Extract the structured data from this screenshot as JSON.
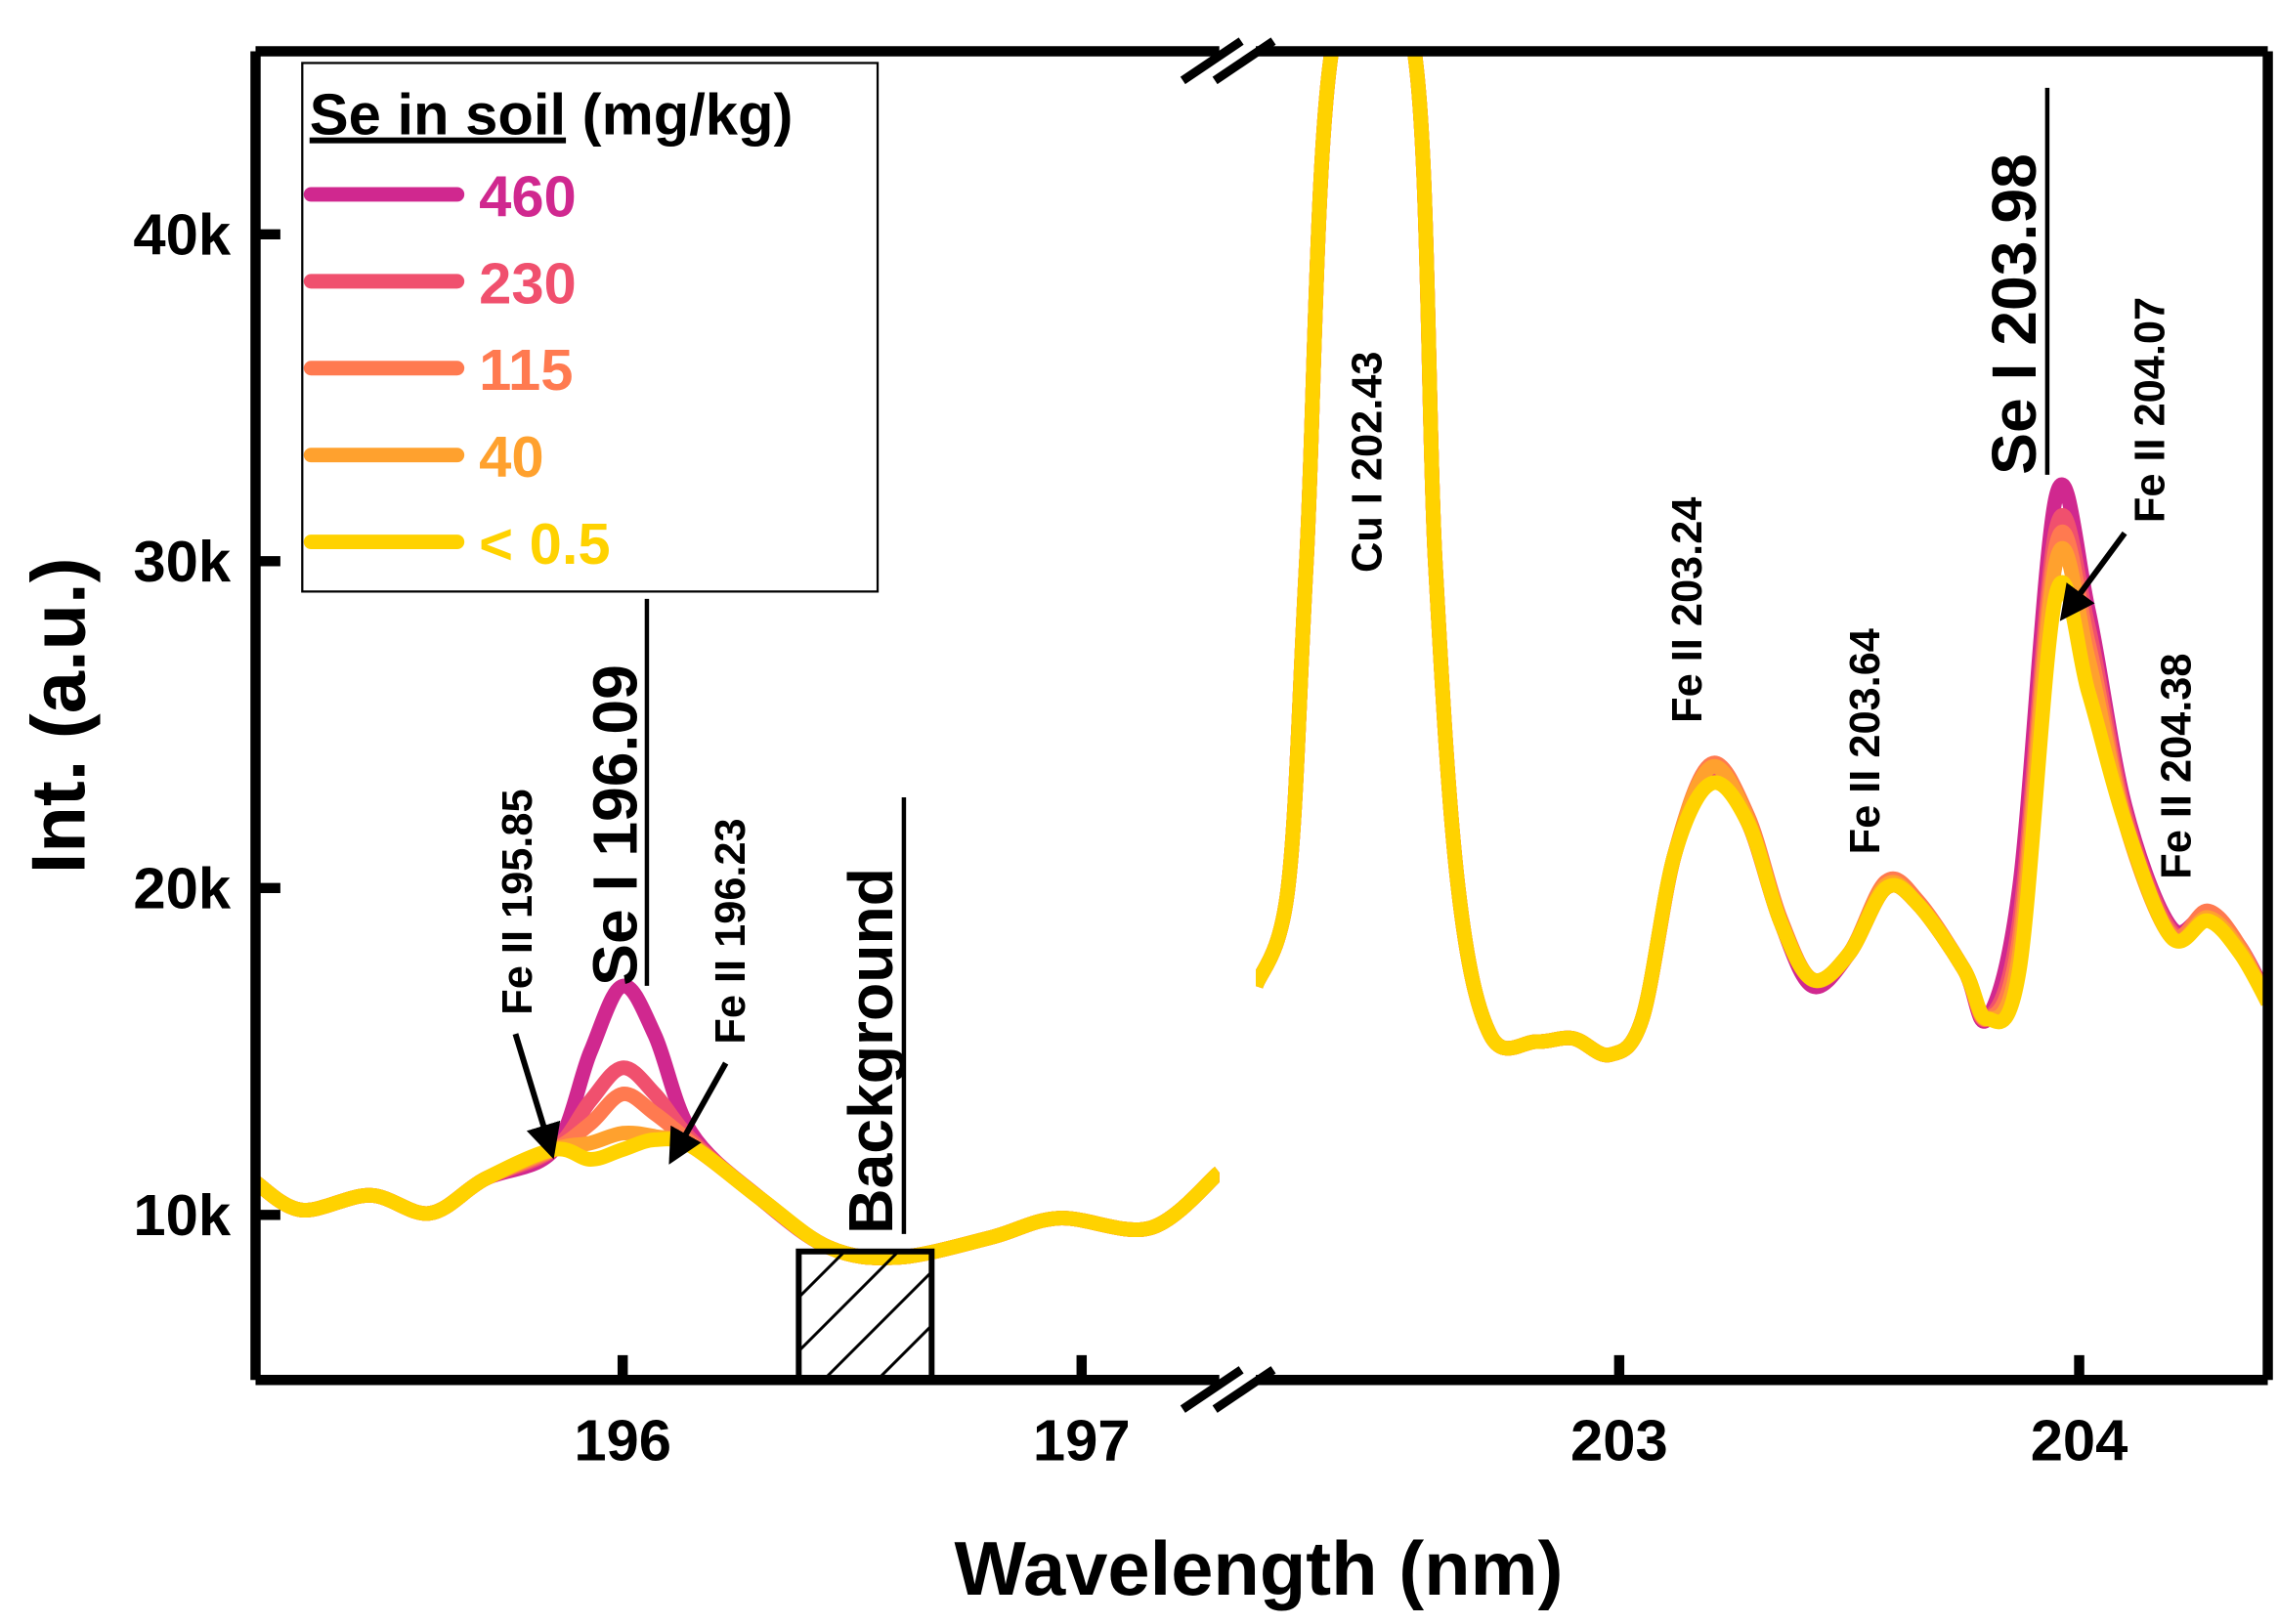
{
  "chart_data": {
    "type": "line",
    "xlabel": "Wavelength (nm)",
    "ylabel": "Int. (a.u.)",
    "ylim": [
      4950,
      45600
    ],
    "yticks": [
      {
        "v": 10000,
        "label": "10k"
      },
      {
        "v": 20000,
        "label": "20k"
      },
      {
        "v": 30000,
        "label": "30k"
      },
      {
        "v": 40000,
        "label": "40k"
      }
    ],
    "axis_break": true,
    "segments": [
      {
        "xlim": [
          195.2,
          197.3
        ],
        "xticks": [
          {
            "v": 196,
            "label": "196"
          },
          {
            "v": 197,
            "label": "197"
          }
        ],
        "x": [
          195.2,
          195.3,
          195.45,
          195.58,
          195.7,
          195.85,
          195.93,
          196.0,
          196.07,
          196.15,
          196.3,
          196.45,
          196.6,
          196.8,
          196.95,
          197.15,
          197.3
        ]
      },
      {
        "xlim": [
          202.21,
          204.41
        ],
        "xticks": [
          {
            "v": 203,
            "label": "203"
          },
          {
            "v": 204,
            "label": "204"
          }
        ],
        "x": [
          202.21,
          202.28,
          202.32,
          202.38,
          202.55,
          202.6,
          202.65,
          202.72,
          202.82,
          202.9,
          202.98,
          203.05,
          203.12,
          203.2,
          203.28,
          203.35,
          203.42,
          203.5,
          203.58,
          203.65,
          203.75,
          203.8,
          203.87,
          203.95,
          204.02,
          204.1,
          204.2,
          204.28,
          204.35,
          204.41
        ]
      }
    ],
    "legend": {
      "title_underlined": "Se in soil",
      "title_rest": " (mg/kg)",
      "placement": "top-left"
    },
    "series": [
      {
        "name": "460",
        "color": "#d0288f",
        "values": [
          [
            11000,
            10150,
            10600,
            10050,
            11100,
            12000,
            15000,
            17000,
            15500,
            12500,
            10500,
            9000,
            8700,
            9300,
            9900,
            9600,
            11300
          ],
          [
            17000,
            20000,
            30000,
            46000,
            46000,
            30000,
            20000,
            15500,
            15300,
            15400,
            14900,
            16000,
            21000,
            23400,
            22000,
            19000,
            17000,
            18000,
            20000,
            19500,
            17500,
            16000,
            20000,
            32000,
            28500,
            22500,
            18800,
            19200,
            18200,
            16600
          ]
        ]
      },
      {
        "name": "230",
        "color": "#f0506e",
        "values": [
          [
            11000,
            10150,
            10600,
            10050,
            11100,
            12000,
            13500,
            14500,
            13700,
            12300,
            10500,
            9000,
            8700,
            9300,
            9900,
            9600,
            11300
          ],
          [
            17000,
            20000,
            30000,
            46000,
            46000,
            30000,
            20000,
            15500,
            15300,
            15400,
            14900,
            16000,
            21000,
            23600,
            22000,
            19000,
            17200,
            18000,
            20000,
            19500,
            17500,
            16000,
            19000,
            31000,
            28000,
            22300,
            18700,
            19100,
            18100,
            16500
          ]
        ]
      },
      {
        "name": "115",
        "color": "#ff7a50",
        "values": [
          [
            11000,
            10150,
            10600,
            10050,
            11100,
            12000,
            12800,
            13700,
            13100,
            12200,
            10500,
            9000,
            8700,
            9300,
            9900,
            9600,
            11300
          ],
          [
            17000,
            20000,
            30000,
            46000,
            46000,
            30000,
            20000,
            15500,
            15300,
            15400,
            14900,
            16000,
            21000,
            23800,
            22200,
            19100,
            17200,
            18000,
            20200,
            19600,
            17500,
            16000,
            18500,
            30500,
            27500,
            22100,
            18600,
            19300,
            18200,
            16500
          ]
        ]
      },
      {
        "name": "40",
        "color": "#ffa12e",
        "values": [
          [
            11000,
            10150,
            10600,
            10050,
            11100,
            12000,
            12200,
            12500,
            12400,
            12100,
            10500,
            9000,
            8700,
            9300,
            9900,
            9600,
            11300
          ],
          [
            17000,
            20000,
            30000,
            46000,
            46000,
            30000,
            20000,
            15500,
            15300,
            15400,
            14900,
            16000,
            21000,
            23700,
            22100,
            19000,
            17200,
            18000,
            20100,
            19500,
            17500,
            16000,
            18000,
            30000,
            27000,
            22000,
            18500,
            19100,
            18100,
            16500
          ]
        ]
      },
      {
        "name": "< 0.5",
        "color": "#ffd200",
        "values": [
          [
            11000,
            10150,
            10600,
            10050,
            11100,
            12000,
            11700,
            12000,
            12300,
            12100,
            10500,
            9000,
            8700,
            9300,
            9900,
            9600,
            11300
          ],
          [
            17000,
            20000,
            30000,
            46000,
            46000,
            30000,
            20000,
            15500,
            15300,
            15400,
            14900,
            16000,
            21000,
            23200,
            22000,
            19000,
            17200,
            18000,
            20000,
            19500,
            17500,
            16000,
            17500,
            29000,
            26000,
            22000,
            18500,
            19000,
            18000,
            16500
          ]
        ]
      }
    ],
    "annotations": {
      "fe19585": "Fe II 195.85",
      "se19609": "Se I 196.09",
      "fe19623": "Fe II 196.23",
      "background": "Background",
      "cu20243": "Cu I 202.43",
      "fe20324": "Fe II 203.24",
      "fe20364": "Fe II 203.64",
      "se20398": "Se I 203.98",
      "fe20407": "Fe II 204.07",
      "fe20438": "Fe II 204.38"
    }
  }
}
